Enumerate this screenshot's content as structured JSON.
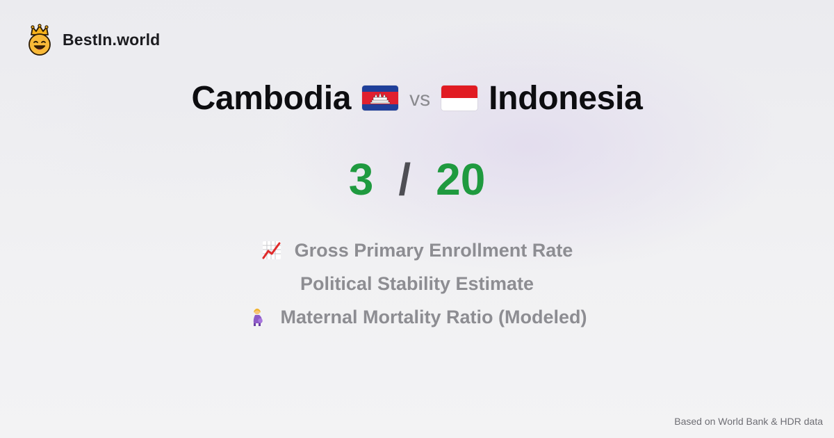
{
  "brand": {
    "name": "BestIn.world",
    "icon": "crowned-smiley-icon"
  },
  "comparison": {
    "country_a": {
      "name": "Cambodia",
      "flag": "cambodia-flag-icon"
    },
    "separator": "vs",
    "country_b": {
      "name": "Indonesia",
      "flag": "indonesia-flag-icon"
    }
  },
  "score": {
    "a": "3",
    "separator": "/",
    "b": "20",
    "color": "#1f9a3f"
  },
  "metrics": [
    {
      "label": "Gross Primary Enrollment Rate",
      "icon": "chart-increasing-icon"
    },
    {
      "label": "Political Stability Estimate",
      "icon": ""
    },
    {
      "label": "Maternal Mortality Ratio (Modeled)",
      "icon": "pregnant-woman-icon"
    }
  ],
  "footer": {
    "source": "Based on World Bank & HDR data"
  }
}
